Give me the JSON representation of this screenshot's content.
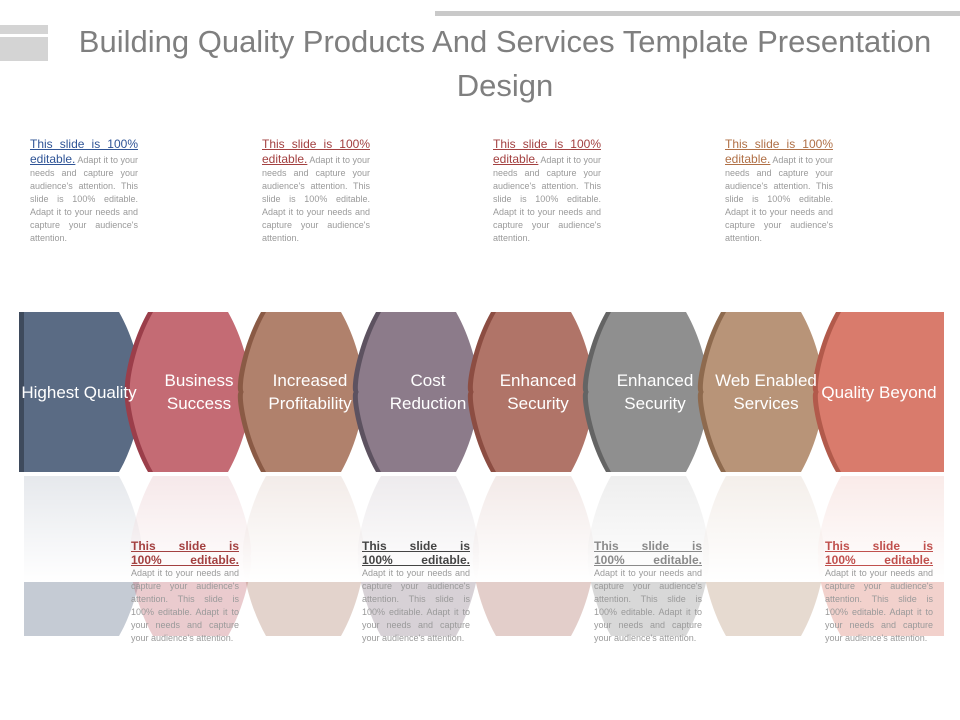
{
  "title": "Building Quality Products And Services Template Presentation Design",
  "note": {
    "lead": "This slide is 100% editable.",
    "body": "Adapt it to your needs and capture your audience's attention. This slide is 100% editable. Adapt it to your needs and capture your audience's attention.",
    "lead_a": "This slide is",
    "lead_b": "100% editable."
  },
  "steps": [
    {
      "label": "Highest Quality",
      "color": "#5a6b84",
      "edge": "#3e4a5c"
    },
    {
      "label": "Business Success",
      "color": "#c46b74",
      "edge": "#9b3e4a"
    },
    {
      "label": "Increased Profitability",
      "color": "#b0816c",
      "edge": "#8a5a45"
    },
    {
      "label": "Cost Reduction",
      "color": "#8c7b8a",
      "edge": "#5d5260"
    },
    {
      "label": "Enhanced Security",
      "color": "#b07468",
      "edge": "#8c4d42"
    },
    {
      "label": "Enhanced Security",
      "color": "#8f8f8f",
      "edge": "#646464"
    },
    {
      "label": "Web Enabled Services",
      "color": "#b89478",
      "edge": "#8e6a4e"
    },
    {
      "label": "Quality Beyond",
      "color": "#d97b6c",
      "edge": "#b25a4b"
    }
  ],
  "top_note_colors": [
    "#2f5496",
    "#a34040",
    "#a34040",
    "#b07046"
  ],
  "bottom_note_colors": [
    "#a34040",
    "#444444",
    "#8a8a8a",
    "#c0504d"
  ]
}
